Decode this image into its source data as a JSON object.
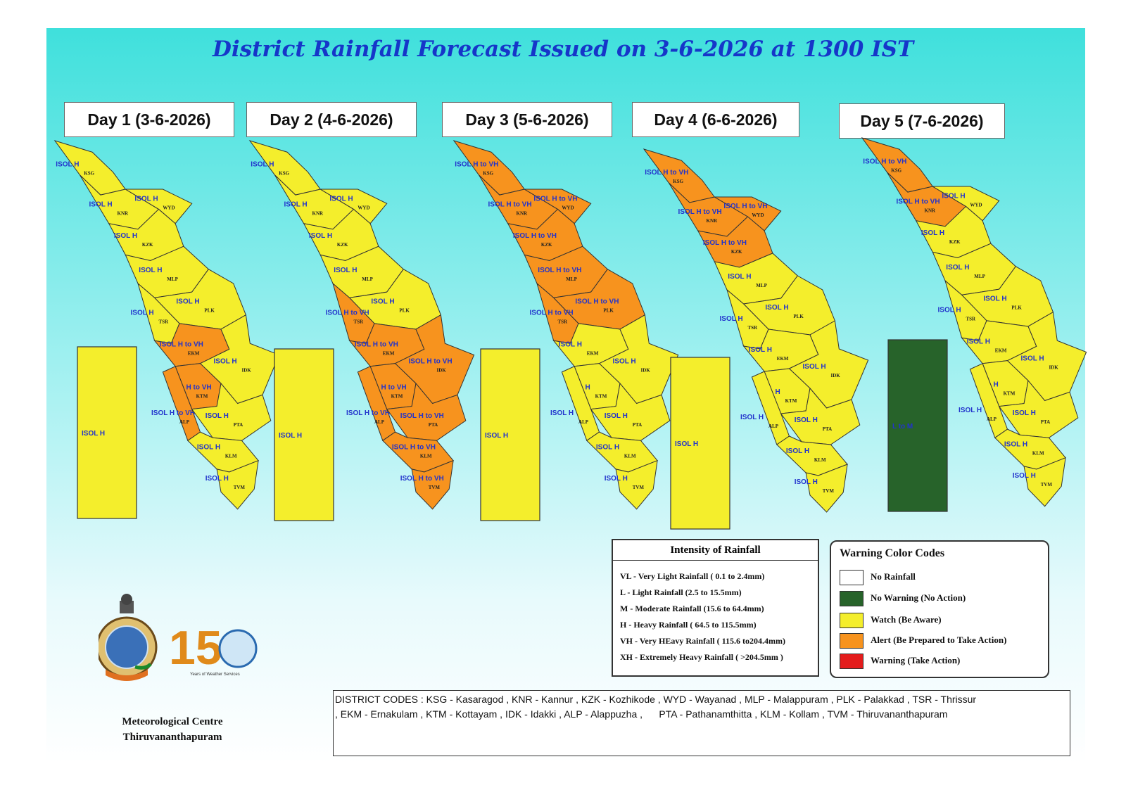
{
  "title": "District Rainfall Forecast Issued on  3-6-2026  at 1300 IST",
  "days": [
    {
      "label": "Day 1 (3-6-2026)",
      "island_label": "ISOL H",
      "island_color": "#f4ee2c"
    },
    {
      "label": "Day 2 (4-6-2026)",
      "island_label": "ISOL H",
      "island_color": "#f4ee2c"
    },
    {
      "label": "Day 3 (5-6-2026)",
      "island_label": "ISOL H",
      "island_color": "#f4ee2c"
    },
    {
      "label": "Day 4 (6-6-2026)",
      "island_label": "ISOL H",
      "island_color": "#f4ee2c"
    },
    {
      "label": "Day 5 (7-6-2026)",
      "island_label": "L to M",
      "island_color": "#27632a"
    }
  ],
  "districts": [
    "KSG",
    "KNR",
    "WYD",
    "KZK",
    "MLP",
    "PLK",
    "TSR",
    "EKM",
    "IDK",
    "KTM",
    "ALP",
    "PTA",
    "KLM",
    "TVM"
  ],
  "forecast": [
    {
      "KSG": {
        "level": "yellow",
        "text": "ISOL H"
      },
      "KNR": {
        "level": "yellow",
        "text": "ISOL H"
      },
      "WYD": {
        "level": "yellow",
        "text": "ISOL H"
      },
      "KZK": {
        "level": "yellow",
        "text": "ISOL H"
      },
      "MLP": {
        "level": "yellow",
        "text": "ISOL H"
      },
      "PLK": {
        "level": "yellow",
        "text": "ISOL H"
      },
      "TSR": {
        "level": "yellow",
        "text": "ISOL H"
      },
      "EKM": {
        "level": "orange",
        "text": "ISOL H to VH"
      },
      "IDK": {
        "level": "yellow",
        "text": "ISOL H"
      },
      "KTM": {
        "level": "orange",
        "text": "ISOL H to VH"
      },
      "ALP": {
        "level": "orange",
        "text": "ISOL H to VH"
      },
      "PTA": {
        "level": "yellow",
        "text": "ISOL H"
      },
      "KLM": {
        "level": "yellow",
        "text": "ISOL H"
      },
      "TVM": {
        "level": "yellow",
        "text": "ISOL H"
      }
    },
    {
      "KSG": {
        "level": "yellow",
        "text": "ISOL H"
      },
      "KNR": {
        "level": "yellow",
        "text": "ISOL H"
      },
      "WYD": {
        "level": "yellow",
        "text": "ISOL H"
      },
      "KZK": {
        "level": "yellow",
        "text": "ISOL H"
      },
      "MLP": {
        "level": "yellow",
        "text": "ISOL H"
      },
      "PLK": {
        "level": "yellow",
        "text": "ISOL H"
      },
      "TSR": {
        "level": "orange",
        "text": "ISOL H to VH"
      },
      "EKM": {
        "level": "orange",
        "text": "ISOL H to VH"
      },
      "IDK": {
        "level": "orange",
        "text": "ISOL H to VH"
      },
      "KTM": {
        "level": "orange",
        "text": "ISOL H to VH"
      },
      "ALP": {
        "level": "orange",
        "text": "ISOL H to VH"
      },
      "PTA": {
        "level": "orange",
        "text": "ISOL H to VH"
      },
      "KLM": {
        "level": "orange",
        "text": "ISOL H to VH"
      },
      "TVM": {
        "level": "orange",
        "text": "ISOL H to VH"
      }
    },
    {
      "KSG": {
        "level": "orange",
        "text": "ISOL H to VH"
      },
      "KNR": {
        "level": "orange",
        "text": "ISOL H to VH"
      },
      "WYD": {
        "level": "orange",
        "text": "ISOL H to VH"
      },
      "KZK": {
        "level": "orange",
        "text": "ISOL H to VH"
      },
      "MLP": {
        "level": "orange",
        "text": "ISOL H to VH"
      },
      "PLK": {
        "level": "orange",
        "text": "ISOL H to VH"
      },
      "TSR": {
        "level": "orange",
        "text": "ISOL H to VH"
      },
      "EKM": {
        "level": "yellow",
        "text": "ISOL H"
      },
      "IDK": {
        "level": "yellow",
        "text": "ISOL H"
      },
      "KTM": {
        "level": "yellow",
        "text": "ISOL H"
      },
      "ALP": {
        "level": "yellow",
        "text": "ISOL H"
      },
      "PTA": {
        "level": "yellow",
        "text": "ISOL H"
      },
      "KLM": {
        "level": "yellow",
        "text": "ISOL H"
      },
      "TVM": {
        "level": "yellow",
        "text": "ISOL H"
      }
    },
    {
      "KSG": {
        "level": "orange",
        "text": "ISOL H to VH"
      },
      "KNR": {
        "level": "orange",
        "text": "ISOL H to VH"
      },
      "WYD": {
        "level": "orange",
        "text": "ISOL H to VH"
      },
      "KZK": {
        "level": "orange",
        "text": "ISOL H to VH"
      },
      "MLP": {
        "level": "yellow",
        "text": "ISOL H"
      },
      "PLK": {
        "level": "yellow",
        "text": "ISOL H"
      },
      "TSR": {
        "level": "yellow",
        "text": "ISOL H"
      },
      "EKM": {
        "level": "yellow",
        "text": "ISOL H"
      },
      "IDK": {
        "level": "yellow",
        "text": "ISOL H"
      },
      "KTM": {
        "level": "yellow",
        "text": "ISOL H"
      },
      "ALP": {
        "level": "yellow",
        "text": "ISOL H"
      },
      "PTA": {
        "level": "yellow",
        "text": "ISOL H"
      },
      "KLM": {
        "level": "yellow",
        "text": "ISOL H"
      },
      "TVM": {
        "level": "yellow",
        "text": "ISOL H"
      }
    },
    {
      "KSG": {
        "level": "orange",
        "text": "ISOL H to VH"
      },
      "KNR": {
        "level": "orange",
        "text": "ISOL H to VH"
      },
      "WYD": {
        "level": "yellow",
        "text": "ISOL H"
      },
      "KZK": {
        "level": "yellow",
        "text": "ISOL H"
      },
      "MLP": {
        "level": "yellow",
        "text": "ISOL H"
      },
      "PLK": {
        "level": "yellow",
        "text": "ISOL H"
      },
      "TSR": {
        "level": "yellow",
        "text": "ISOL H"
      },
      "EKM": {
        "level": "yellow",
        "text": "ISOL H"
      },
      "IDK": {
        "level": "yellow",
        "text": "ISOL H"
      },
      "KTM": {
        "level": "yellow",
        "text": "ISOL H"
      },
      "ALP": {
        "level": "yellow",
        "text": "ISOL H"
      },
      "PTA": {
        "level": "yellow",
        "text": "ISOL H"
      },
      "KLM": {
        "level": "yellow",
        "text": "ISOL H"
      },
      "TVM": {
        "level": "yellow",
        "text": "ISOL H"
      }
    }
  ],
  "level_colors": {
    "yellow": "#f4ee2c",
    "orange": "#f7931e",
    "green": "#27632a",
    "white": "#ffffff",
    "red": "#e41c1c"
  },
  "intensity_legend": {
    "title": "Intensity of Rainfall",
    "rows": [
      "VL - Very Light Rainfall ( 0.1 to 2.4mm)",
      "L   - Light Rainfall (2.5 to 15.5mm)",
      "M  - Moderate Rainfall (15.6 to 64.4mm)",
      "H  - Heavy Rainfall ( 64.5 to 115.5mm)",
      "VH - Very HEavy Rainfall ( 115.6 to204.4mm)",
      "XH - Extremely Heavy Rainfall ( >204.5mm )"
    ]
  },
  "warning_legend": {
    "title": "Warning Color Codes",
    "items": [
      {
        "label": "No Rainfall",
        "color": "#ffffff"
      },
      {
        "label": "No Warning (No Action)",
        "color": "#27632a"
      },
      {
        "label": "Watch (Be Aware)",
        "color": "#f4ee2c"
      },
      {
        "label": "Alert (Be Prepared to Take Action)",
        "color": "#f7931e"
      },
      {
        "label": "Warning (Take Action)",
        "color": "#e41c1c"
      }
    ]
  },
  "district_codes": {
    "line1": "DISTRICT CODES : KSG - Kasaragod , KNR - Kannur , KZK - Kozhikode , WYD - Wayanad , MLP - Malappuram , PLK - Palakkad , TSR - Thrissur",
    "line2": ", EKM - Ernakulam , KTM - Kottayam , IDK - Idakki , ALP - Alappuzha ,      PTA - Pathanamthitta , KLM - Kollam , TVM - Thiruvananthapuram"
  },
  "logo": {
    "number": "150",
    "caption": "Years of Weather Services"
  },
  "org": {
    "line1": "Meteorological Centre",
    "line2": "Thiruvananthapuram"
  }
}
